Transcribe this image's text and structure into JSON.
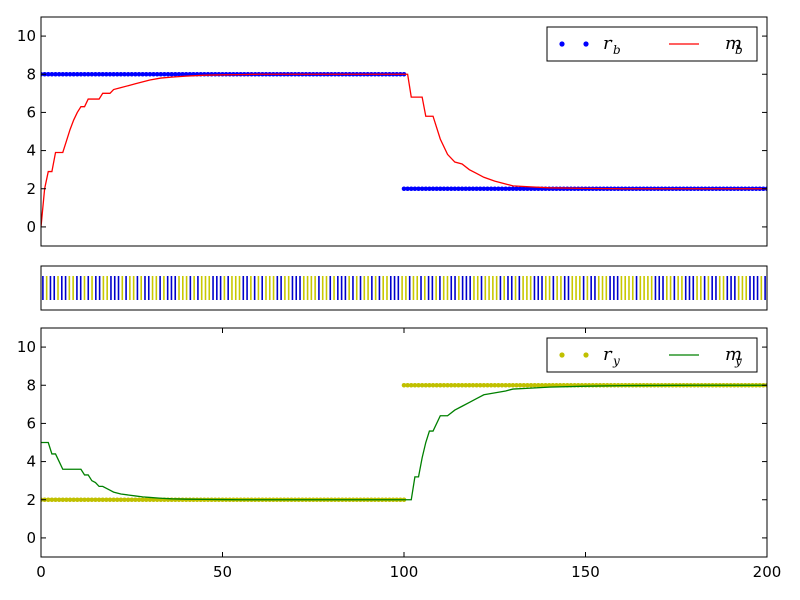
{
  "chart_data": [
    {
      "type": "line",
      "panel": "top",
      "xlim": [
        0,
        200
      ],
      "ylim": [
        -1,
        11
      ],
      "yticks": [
        0,
        2,
        4,
        6,
        8,
        10
      ],
      "xticks_visible": false,
      "legend": {
        "placement": "top-right",
        "columns": 2
      },
      "series": [
        {
          "name_base": "r",
          "name_sub": "b",
          "kind": "scatter",
          "color": "#0000ff",
          "segments": [
            {
              "x_from": 0,
              "x_to": 100,
              "step": 1,
              "y": 8
            },
            {
              "x_from": 100,
              "x_to": 200,
              "step": 1,
              "y": 2
            }
          ]
        },
        {
          "name_base": "m",
          "name_sub": "b",
          "kind": "line",
          "color": "#ff0000",
          "x": [
            0,
            1,
            2,
            3,
            4,
            5,
            6,
            7,
            8,
            9,
            10,
            11,
            12,
            13,
            14,
            15,
            16,
            17,
            18,
            19,
            20,
            22,
            24,
            26,
            28,
            30,
            33,
            36,
            40,
            45,
            50,
            55,
            60,
            70,
            80,
            90,
            99,
            100,
            101,
            102,
            104,
            105,
            106,
            107,
            108,
            110,
            112,
            114,
            116,
            118,
            120,
            122,
            125,
            128,
            130,
            135,
            140,
            150,
            160,
            180,
            200
          ],
          "y": [
            0,
            2.0,
            2.9,
            2.9,
            3.9,
            3.9,
            3.9,
            4.5,
            5.1,
            5.6,
            6.0,
            6.3,
            6.3,
            6.7,
            6.7,
            6.7,
            6.7,
            7.0,
            7.0,
            7.0,
            7.2,
            7.3,
            7.4,
            7.5,
            7.6,
            7.7,
            7.8,
            7.85,
            7.9,
            7.95,
            7.97,
            7.98,
            8.0,
            8.0,
            8.0,
            8.0,
            8.0,
            8.0,
            8.0,
            6.8,
            6.8,
            6.8,
            5.8,
            5.8,
            5.8,
            4.6,
            3.8,
            3.4,
            3.3,
            3.0,
            2.8,
            2.6,
            2.4,
            2.25,
            2.15,
            2.1,
            2.05,
            2.02,
            2.0,
            2.0,
            2.0
          ]
        }
      ]
    },
    {
      "type": "strip",
      "panel": "middle",
      "xlim": [
        0,
        200
      ],
      "colors": {
        "b": "#0000cc",
        "y": "#c8c800"
      },
      "sequence": "bybbybbyybbybybbyybbbybyybybbyybybbbyyybybyyybbbybyyybbybybyyybbyybbbyyyybyybybbbybybyybybyybbbyybyybybbybyybbybbbyybyyyybybbybyyybbbyybyybbyyybybbyyybbbyyyybyyyybbbyybyybbbyybybbyybbbyyybbbyb"
    },
    {
      "type": "line",
      "panel": "bottom",
      "xlim": [
        0,
        200
      ],
      "ylim": [
        -1,
        11
      ],
      "yticks": [
        0,
        2,
        4,
        6,
        8,
        10
      ],
      "xticks": [
        0,
        50,
        100,
        150,
        200
      ],
      "legend": {
        "placement": "top-right",
        "columns": 2
      },
      "series": [
        {
          "name_base": "r",
          "name_sub": "y",
          "kind": "scatter",
          "color": "#c0c000",
          "segments": [
            {
              "x_from": 0,
              "x_to": 100,
              "step": 1,
              "y": 2
            },
            {
              "x_from": 100,
              "x_to": 200,
              "step": 1,
              "y": 8
            }
          ]
        },
        {
          "name_base": "m",
          "name_sub": "y",
          "kind": "line",
          "color": "#008000",
          "x": [
            0,
            1,
            2,
            3,
            4,
            5,
            6,
            7,
            8,
            9,
            10,
            11,
            12,
            13,
            14,
            15,
            16,
            17,
            18,
            19,
            20,
            22,
            24,
            26,
            28,
            30,
            33,
            36,
            40,
            45,
            50,
            55,
            60,
            70,
            80,
            90,
            99,
            100,
            101,
            102,
            103,
            104,
            105,
            106,
            107,
            108,
            110,
            112,
            114,
            116,
            118,
            120,
            122,
            125,
            128,
            130,
            135,
            140,
            150,
            160,
            180,
            200
          ],
          "y": [
            5.0,
            5.0,
            5.0,
            4.4,
            4.4,
            4.0,
            3.6,
            3.6,
            3.6,
            3.6,
            3.6,
            3.6,
            3.3,
            3.3,
            3.0,
            2.9,
            2.7,
            2.7,
            2.6,
            2.5,
            2.4,
            2.3,
            2.25,
            2.2,
            2.15,
            2.12,
            2.08,
            2.05,
            2.03,
            2.02,
            2.01,
            2.0,
            2.0,
            2.0,
            2.0,
            2.0,
            2.0,
            2.0,
            2.0,
            2.0,
            3.2,
            3.2,
            4.2,
            5.0,
            5.6,
            5.6,
            6.4,
            6.4,
            6.7,
            6.9,
            7.1,
            7.3,
            7.5,
            7.6,
            7.7,
            7.8,
            7.85,
            7.9,
            7.95,
            7.98,
            8.0,
            8.0
          ]
        }
      ]
    }
  ]
}
